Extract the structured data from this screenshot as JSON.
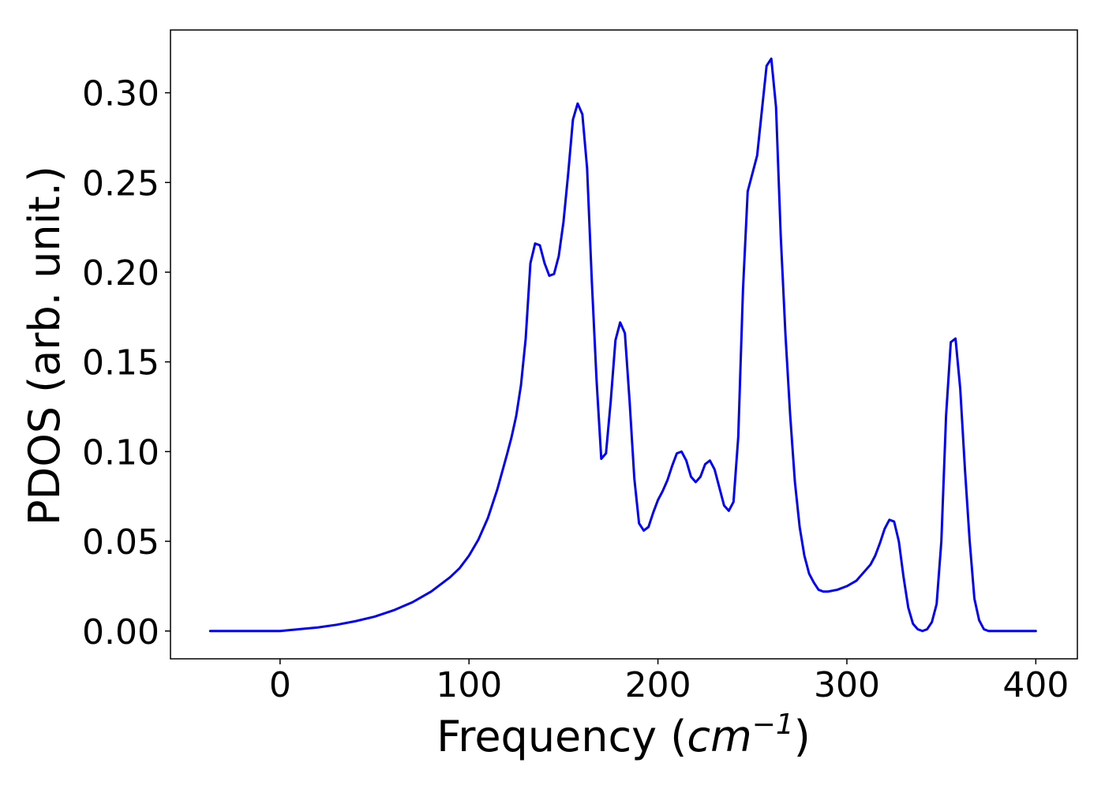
{
  "chart_data": {
    "type": "line",
    "title": "",
    "xlabel": {
      "prefix": "Frequency (",
      "base": "cm",
      "superscript": "−1",
      "suffix": ")"
    },
    "ylabel": "PDOS (arb. unit.)",
    "xlim": [
      -58,
      422
    ],
    "ylim": [
      -0.0155,
      0.335
    ],
    "x_ticks": [
      0,
      100,
      200,
      300,
      400
    ],
    "y_ticks": [
      0.0,
      0.05,
      0.1,
      0.15,
      0.2,
      0.25,
      0.3
    ],
    "x_tick_labels": [
      "0",
      "100",
      "200",
      "300",
      "400"
    ],
    "y_tick_labels": [
      "0.00",
      "0.05",
      "0.10",
      "0.15",
      "0.20",
      "0.25",
      "0.30"
    ],
    "grid": false,
    "legend": "none",
    "series": [
      {
        "color": "#0000ff",
        "x": [
          -37,
          -20,
          0,
          10,
          20,
          30,
          40,
          50,
          60,
          70,
          80,
          90,
          95,
          100,
          105,
          110,
          115,
          120,
          122.5,
          125,
          127.5,
          130,
          132.5,
          135,
          137.5,
          140,
          142.5,
          145,
          147.5,
          150,
          152.5,
          155,
          157.5,
          160,
          162.5,
          165,
          167.5,
          170,
          172.5,
          175,
          177.5,
          180,
          182.5,
          185,
          187.5,
          190,
          192.5,
          195,
          197.5,
          200,
          202.5,
          205,
          207.5,
          210,
          212.5,
          215,
          217.5,
          220,
          222.5,
          225,
          227.5,
          230,
          232.5,
          235,
          237.5,
          240,
          242.5,
          245,
          247.5,
          250,
          252.5,
          255,
          257.5,
          260,
          262.5,
          265,
          267.5,
          270,
          272.5,
          275,
          277.5,
          280,
          282.5,
          285,
          287.5,
          290,
          295,
          300,
          305,
          307.5,
          310,
          312.5,
          315,
          317.5,
          320,
          322.5,
          325,
          327.5,
          330,
          332.5,
          335,
          337.5,
          340,
          342.5,
          345,
          347.5,
          350,
          352.5,
          355,
          357.5,
          360,
          362.5,
          365,
          367.5,
          370,
          372.5,
          375,
          380,
          390,
          400
        ],
        "y": [
          0.0,
          0.0,
          0.0,
          0.001,
          0.002,
          0.0035,
          0.0055,
          0.008,
          0.0115,
          0.016,
          0.022,
          0.03,
          0.035,
          0.042,
          0.051,
          0.063,
          0.079,
          0.098,
          0.108,
          0.12,
          0.137,
          0.163,
          0.205,
          0.216,
          0.215,
          0.205,
          0.198,
          0.199,
          0.209,
          0.228,
          0.255,
          0.285,
          0.294,
          0.288,
          0.258,
          0.195,
          0.14,
          0.096,
          0.099,
          0.128,
          0.162,
          0.172,
          0.166,
          0.128,
          0.085,
          0.06,
          0.056,
          0.058,
          0.066,
          0.073,
          0.078,
          0.084,
          0.092,
          0.099,
          0.1,
          0.095,
          0.086,
          0.083,
          0.086,
          0.093,
          0.095,
          0.09,
          0.08,
          0.07,
          0.067,
          0.072,
          0.108,
          0.19,
          0.245,
          0.255,
          0.265,
          0.29,
          0.315,
          0.319,
          0.292,
          0.22,
          0.165,
          0.12,
          0.083,
          0.058,
          0.042,
          0.032,
          0.027,
          0.023,
          0.022,
          0.022,
          0.023,
          0.025,
          0.028,
          0.031,
          0.034,
          0.037,
          0.042,
          0.049,
          0.057,
          0.062,
          0.061,
          0.05,
          0.03,
          0.013,
          0.004,
          0.001,
          0.0,
          0.001,
          0.005,
          0.015,
          0.05,
          0.12,
          0.161,
          0.163,
          0.135,
          0.09,
          0.05,
          0.018,
          0.006,
          0.001,
          0.0,
          0.0,
          0.0,
          0.0
        ]
      }
    ]
  }
}
